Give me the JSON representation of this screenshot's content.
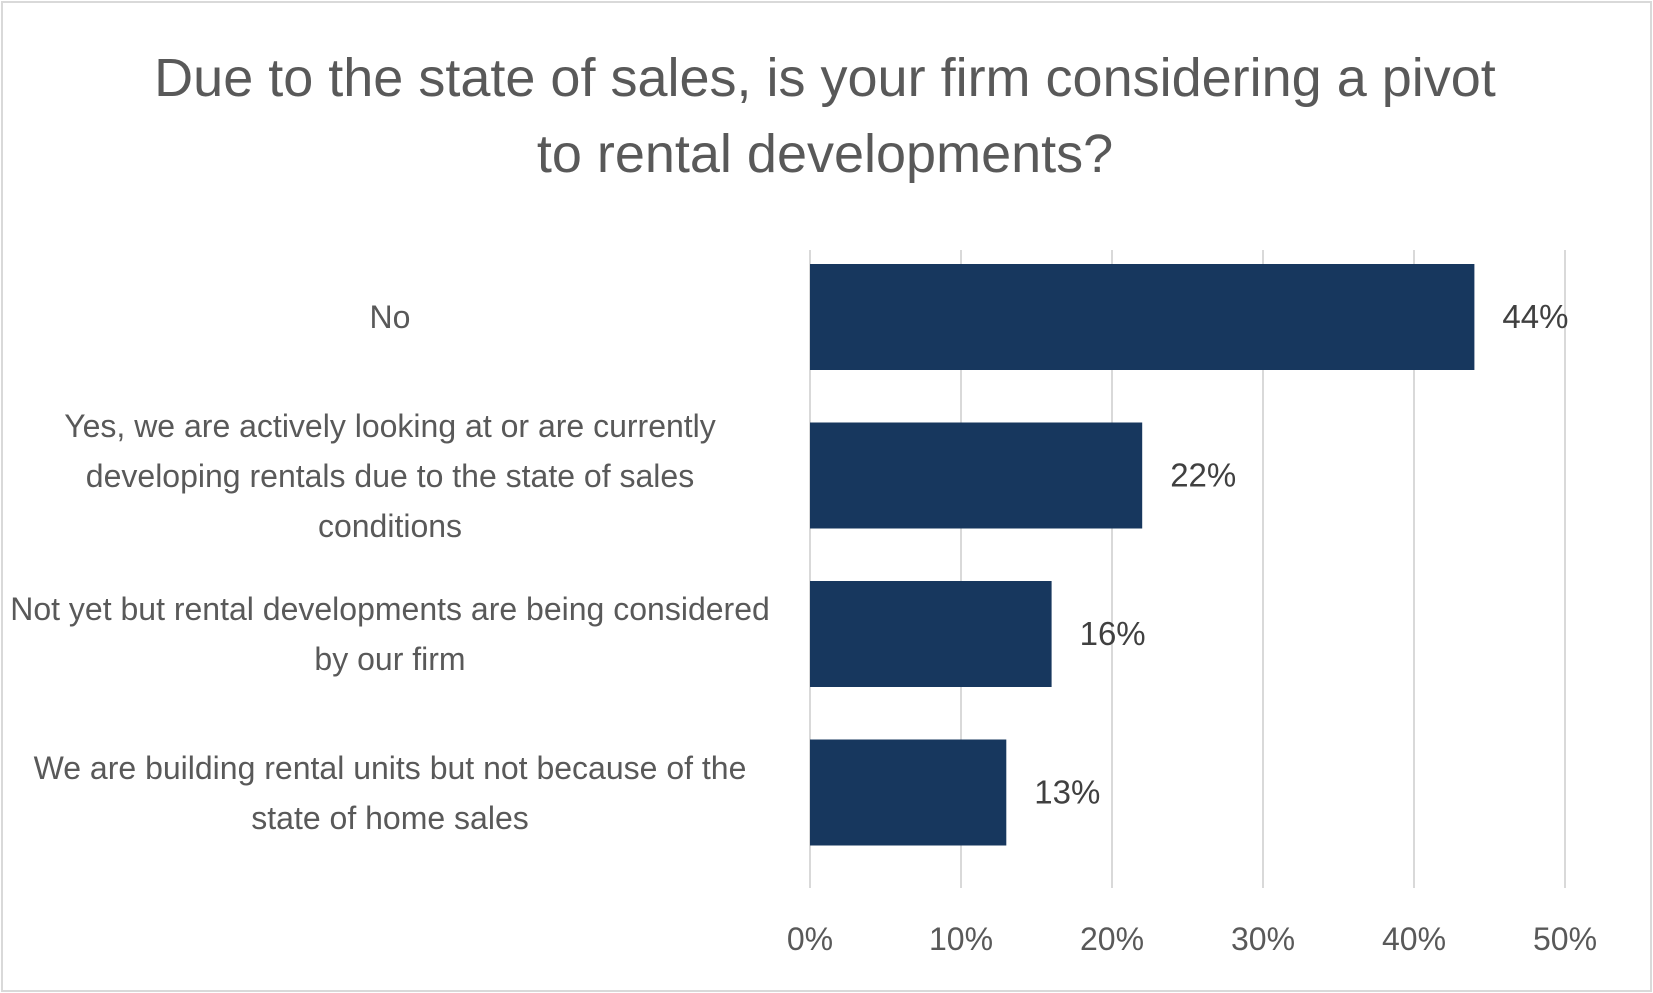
{
  "chart_data": {
    "type": "bar",
    "orientation": "horizontal",
    "title": "Due to the state of sales, is your firm considering a pivot to rental developments?",
    "categories": [
      "No",
      "Yes, we are actively looking at or are currently developing rentals due to the state of sales conditions",
      "Not yet but rental developments are being considered by our firm",
      "We are building rental units but not because of the state of home sales"
    ],
    "values": [
      44,
      22,
      16,
      13
    ],
    "data_labels": [
      "44%",
      "22%",
      "16%",
      "13%"
    ],
    "xlim": [
      0,
      50
    ],
    "xticks": [
      0,
      10,
      20,
      30,
      40,
      50
    ],
    "xtick_labels": [
      "0%",
      "10%",
      "20%",
      "30%",
      "40%",
      "50%"
    ],
    "grid": "vertical",
    "legend": "none",
    "colors": {
      "bar": "#17375e",
      "grid": "#d9d9d9",
      "text": "#595959"
    }
  }
}
